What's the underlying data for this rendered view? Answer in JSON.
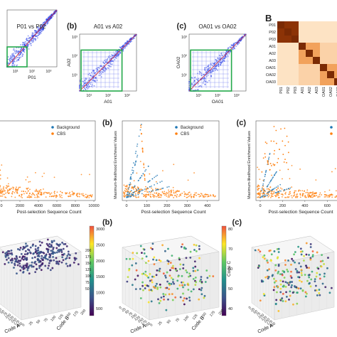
{
  "row1": {
    "panels": [
      {
        "letter": "",
        "title": "P01 vs P02",
        "xlabel": "P01",
        "ylabel": "",
        "ticks": [
          "10¹",
          "10²",
          "10³"
        ]
      },
      {
        "letter": "(b)",
        "title": "A01 vs A02",
        "xlabel": "A01",
        "ylabel": "A02",
        "ticks": [
          "10¹",
          "10²",
          "10³"
        ]
      },
      {
        "letter": "(c)",
        "title": "OA01 vs OA02",
        "xlabel": "OA01",
        "ylabel": "OA02",
        "ticks": [
          "10¹",
          "10²",
          "10³"
        ]
      }
    ],
    "yticks": [
      "10³",
      "10²",
      "10¹"
    ],
    "heatmap_letter": "B",
    "heatmap_labels": [
      "P01",
      "P02",
      "P03",
      "A01",
      "A02",
      "A03",
      "OA01",
      "OA02",
      "OA03"
    ]
  },
  "row2": {
    "panels": [
      {
        "letter": "",
        "xlabel": "Post-selection Sequence Count",
        "ylabel": "",
        "xticks": [
          "0",
          "2000",
          "4000",
          "6000",
          "8000",
          "10000"
        ],
        "xmax": 10000
      },
      {
        "letter": "(b)",
        "xlabel": "Post-selection Sequence Count",
        "ylabel": "Maximum-likelihood Enrichment Values",
        "xticks": [
          "0",
          "100",
          "200",
          "300",
          "400"
        ],
        "xmax": 450
      },
      {
        "letter": "(c)",
        "xlabel": "Post-selection Sequence Count",
        "ylabel": "Maximum-likelihood Enrichment Values",
        "xticks": [
          "0",
          "200",
          "400",
          "600"
        ],
        "xmax": 700
      }
    ],
    "legend": [
      {
        "name": "Background",
        "color": "#1f77b4"
      },
      {
        "name": "CBS",
        "color": "#ff7f0e"
      }
    ]
  },
  "row3": {
    "panels": [
      {
        "letter": "",
        "xlabel": "Code A",
        "ylabel": "Code B",
        "zlabel": "",
        "colorbar": [
          "3000",
          "2500",
          "2000",
          "1500",
          "1000",
          "500"
        ],
        "zticks": [
          "200",
          "175",
          "150",
          "125",
          "100",
          "75",
          "50"
        ]
      },
      {
        "letter": "(b)",
        "xlabel": "Code A",
        "ylabel": "Code B",
        "zlabel": "Code C",
        "colorbar": [
          "80",
          "70",
          "60",
          "50",
          "40"
        ],
        "xticks": [
          "0",
          "25",
          "50",
          "75",
          "100",
          "125",
          "150",
          "175",
          "200"
        ]
      },
      {
        "letter": "(c)",
        "xlabel": "Code A",
        "ylabel": "",
        "zlabel": "",
        "colorbar": [],
        "xticks": [
          "0",
          "25",
          "50",
          "75",
          "100",
          "125",
          "150",
          "175",
          "200"
        ]
      }
    ],
    "bticks": [
      "0",
      "25",
      "50",
      "75",
      "100",
      "125",
      "150",
      "175",
      "200"
    ]
  },
  "chart_data": [
    {
      "type": "scatter",
      "title": "P01 vs P02",
      "xlabel": "P01",
      "ylabel": "",
      "log": true,
      "xlim": [
        1,
        1000
      ],
      "ylim": [
        1,
        1000
      ]
    },
    {
      "type": "scatter",
      "title": "A01 vs A02",
      "xlabel": "A01",
      "ylabel": "A02",
      "log": true,
      "xlim": [
        1,
        1000
      ],
      "ylim": [
        1,
        1000
      ]
    },
    {
      "type": "scatter",
      "title": "OA01 vs OA02",
      "xlabel": "OA01",
      "ylabel": "OA02",
      "log": true,
      "xlim": [
        1,
        1000
      ],
      "ylim": [
        1,
        1000
      ]
    },
    {
      "type": "heatmap",
      "categories": [
        "P01",
        "P02",
        "P03",
        "A01",
        "A02",
        "A03",
        "OA01",
        "OA02",
        "OA03"
      ],
      "colors": "orange scale"
    },
    {
      "type": "scatter",
      "xlabel": "Post-selection Sequence Count",
      "xlim": [
        0,
        10000
      ],
      "series": [
        {
          "name": "Background"
        },
        {
          "name": "CBS"
        }
      ]
    },
    {
      "type": "scatter",
      "xlabel": "Post-selection Sequence Count",
      "ylabel": "Maximum-likelihood Enrichment Values",
      "xlim": [
        0,
        450
      ],
      "series": [
        {
          "name": "Background"
        },
        {
          "name": "CBS"
        }
      ]
    },
    {
      "type": "scatter",
      "xlabel": "Post-selection Sequence Count",
      "ylabel": "Maximum-likelihood Enrichment Values",
      "xlim": [
        0,
        700
      ],
      "series": [
        {
          "name": "Background"
        },
        {
          "name": "CBS"
        }
      ]
    },
    {
      "type": "scatter",
      "xlabel": "Code A",
      "ylabel": "Code B",
      "colorbar_range": [
        500,
        3000
      ]
    },
    {
      "type": "scatter",
      "xlabel": "Code A",
      "ylabel": "Code B",
      "zlabel": "Code C",
      "colorbar_range": [
        40,
        80
      ]
    },
    {
      "type": "scatter",
      "xlabel": "Code A"
    }
  ]
}
